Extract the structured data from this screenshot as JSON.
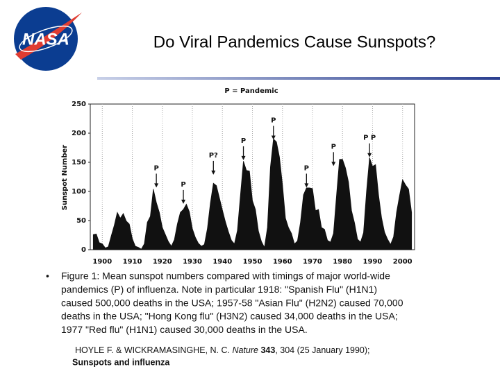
{
  "header": {
    "logo": "NASA",
    "title": "Do Viral Pandemics Cause Sunspots?"
  },
  "chart_data": {
    "type": "area",
    "title": "P = Pandemic",
    "y_label": "Sunspot Number",
    "color": "#111111",
    "grid": true,
    "x": [
      1897,
      1898,
      1899,
      1900,
      1901,
      1902,
      1903,
      1904,
      1905,
      1906,
      1907,
      1908,
      1909,
      1910,
      1911,
      1912,
      1913,
      1914,
      1915,
      1916,
      1917,
      1918,
      1919,
      1920,
      1921,
      1922,
      1923,
      1924,
      1925,
      1926,
      1927,
      1928,
      1929,
      1930,
      1931,
      1932,
      1933,
      1934,
      1935,
      1936,
      1937,
      1938,
      1939,
      1940,
      1941,
      1942,
      1943,
      1944,
      1945,
      1946,
      1947,
      1948,
      1949,
      1950,
      1951,
      1952,
      1953,
      1954,
      1955,
      1956,
      1957,
      1958,
      1959,
      1960,
      1961,
      1962,
      1963,
      1964,
      1965,
      1966,
      1967,
      1968,
      1969,
      1970,
      1971,
      1972,
      1973,
      1974,
      1975,
      1976,
      1977,
      1978,
      1979,
      1980,
      1981,
      1982,
      1983,
      1984,
      1985,
      1986,
      1987,
      1988,
      1989,
      1990,
      1991,
      1992,
      1993,
      1994,
      1995,
      1996,
      1997,
      1998,
      1999,
      2000,
      2001,
      2002,
      2003
    ],
    "values": [
      26,
      27,
      12,
      10,
      3,
      5,
      24,
      42,
      64,
      54,
      62,
      49,
      44,
      19,
      6,
      4,
      1,
      10,
      47,
      57,
      104,
      81,
      64,
      38,
      26,
      14,
      6,
      17,
      44,
      64,
      69,
      78,
      65,
      36,
      21,
      11,
      6,
      9,
      36,
      80,
      114,
      110,
      89,
      68,
      48,
      31,
      16,
      10,
      33,
      93,
      152,
      136,
      135,
      84,
      69,
      32,
      14,
      4,
      38,
      142,
      190,
      185,
      159,
      112,
      54,
      38,
      28,
      10,
      15,
      47,
      94,
      106,
      106,
      105,
      67,
      69,
      38,
      35,
      16,
      13,
      28,
      93,
      155,
      155,
      140,
      116,
      67,
      46,
      18,
      13,
      29,
      100,
      158,
      143,
      146,
      94,
      55,
      30,
      18,
      9,
      22,
      64,
      93,
      120,
      111,
      104,
      64
    ],
    "xlim": [
      1896,
      2004
    ],
    "ylim": [
      0,
      250
    ],
    "xticks": [
      1900,
      1910,
      1920,
      1930,
      1940,
      1950,
      1960,
      1970,
      1980,
      1990,
      2000
    ],
    "yticks": [
      0,
      50,
      100,
      150,
      200,
      250
    ],
    "annotations": [
      {
        "x": 1918,
        "y": 140,
        "label": "P"
      },
      {
        "x": 1927,
        "y": 112,
        "label": "P"
      },
      {
        "x": 1937,
        "y": 162,
        "label": "P?"
      },
      {
        "x": 1947,
        "y": 187,
        "label": "P"
      },
      {
        "x": 1957,
        "y": 222,
        "label": "P"
      },
      {
        "x": 1968,
        "y": 140,
        "label": "P"
      },
      {
        "x": 1977,
        "y": 177,
        "label": "P"
      },
      {
        "x": 1989,
        "y": 192,
        "label": "P P"
      }
    ]
  },
  "caption": {
    "bullet": "•",
    "lines": [
      "Figure 1: Mean sunspot numbers compared with timings of major world-wide",
      "pandemics (P) of influenza. Note in particular 1918: \"Spanish Flu\" (H1N1)",
      "caused 500,000 deaths in the USA; 1957-58 \"Asian Flu\" (H2N2) caused 70,000",
      "deaths in the USA; \"Hong Kong flu\" (H3N2) caused 34,000 deaths in the USA;",
      "1977 \"Red flu\" (H1N1) caused 30,000 deaths in the USA."
    ]
  },
  "citation": {
    "authors": "HOYLE F.  & WICKRAMASINGHE, N. C. ",
    "journal": "Nature",
    "volume": " 343",
    "rest": ", 304 (25 January 1990);",
    "subject": "Sunspots and influenza"
  }
}
